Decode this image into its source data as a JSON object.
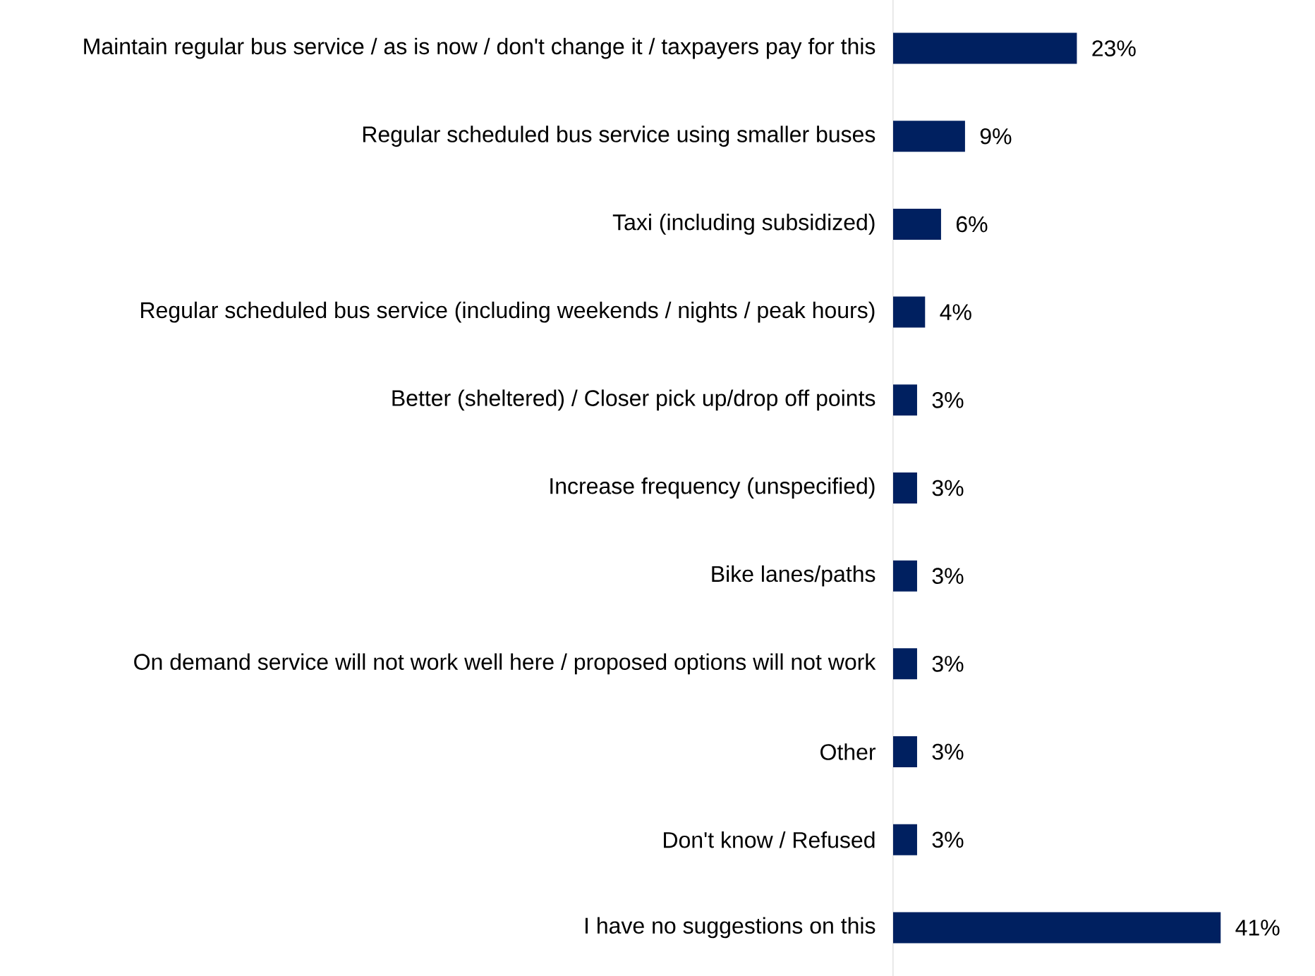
{
  "chart_data": {
    "type": "bar",
    "orientation": "horizontal",
    "color": "#002060",
    "categories": [
      "Maintain regular bus service / as is now / don't change it / taxpayers pay for this",
      "Regular scheduled bus service using smaller buses",
      "Taxi (including subsidized)",
      "Regular scheduled bus service (including weekends / nights / peak hours)",
      "Better (sheltered) / Closer pick up/drop off points",
      "Increase frequency (unspecified)",
      "Bike lanes/paths",
      "On demand service will not work well here / proposed options will not work",
      "Other",
      "Don't know / Refused",
      "I have no suggestions on this"
    ],
    "values": [
      23,
      9,
      6,
      4,
      3,
      3,
      3,
      3,
      3,
      3,
      41
    ],
    "value_labels": [
      "23%",
      "9%",
      "6%",
      "4%",
      "3%",
      "3%",
      "3%",
      "3%",
      "3%",
      "3%",
      "41%"
    ]
  }
}
